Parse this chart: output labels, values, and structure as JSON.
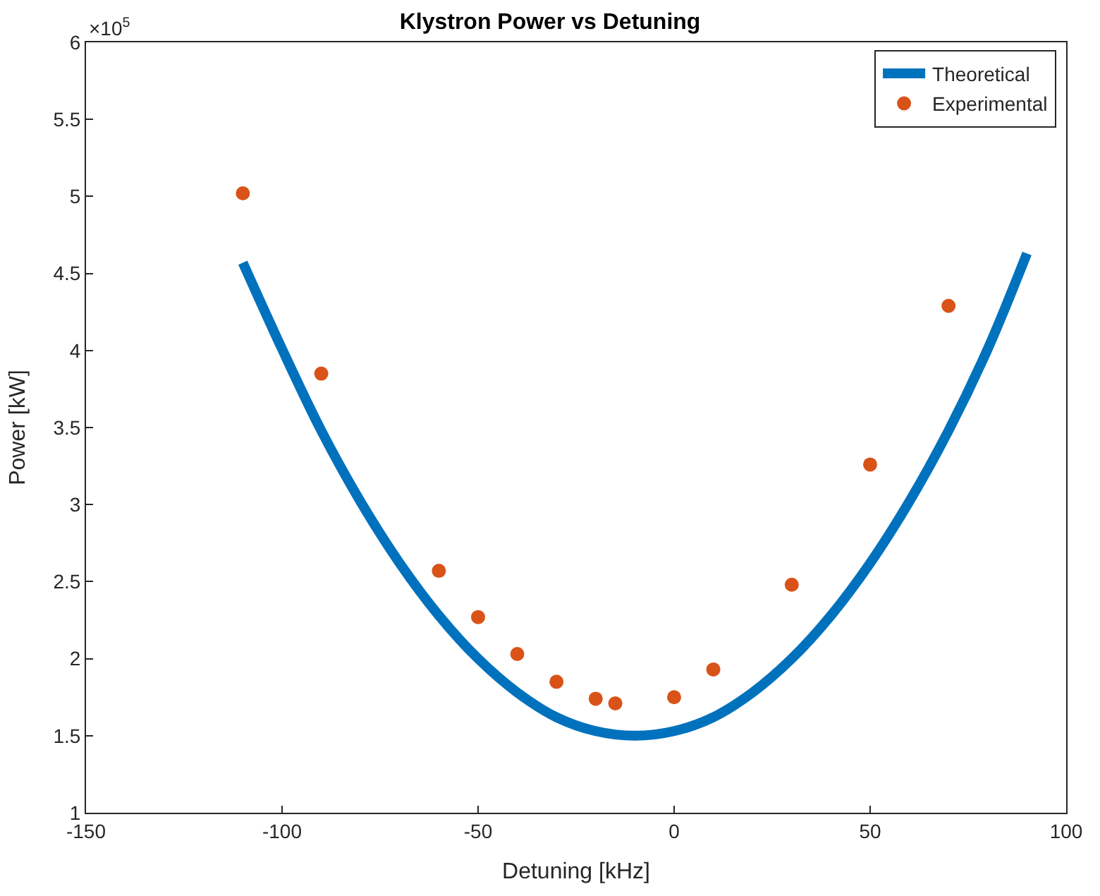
{
  "chart_data": {
    "type": "line",
    "title": "Klystron Power vs Detuning",
    "xlabel": "Detuning [kHz]",
    "ylabel": "Power [kW]",
    "annotations": [
      "×10$^{5}$"
    ],
    "xlim": [
      -150,
      100
    ],
    "xticks": [
      -150,
      -100,
      -50,
      0,
      50,
      100
    ],
    "ylim": [
      1,
      6
    ],
    "yticks": [
      1,
      1.5,
      2,
      2.5,
      3,
      3.5,
      4,
      4.5,
      5,
      5.5,
      6
    ],
    "legend": "top right",
    "series": [
      {
        "name": "Theoretical",
        "color": "#0072bd",
        "marker": "none",
        "line_style": "solid",
        "x": [
          -110,
          -100,
          -90,
          -80,
          -70,
          -60,
          -50,
          -40,
          -30,
          -20,
          -10,
          0,
          10,
          20,
          30,
          40,
          50,
          60,
          70,
          80,
          90
        ],
        "values": [
          4.57,
          4.01,
          3.48,
          3.02,
          2.62,
          2.28,
          2.0,
          1.78,
          1.62,
          1.53,
          1.5,
          1.53,
          1.62,
          1.78,
          2.0,
          2.28,
          2.62,
          3.02,
          3.48,
          4.01,
          4.63
        ]
      },
      {
        "name": "Experimental",
        "type": "scatter",
        "color": "#d95319",
        "marker": "circle",
        "x": [
          -110,
          -90,
          -60,
          -50,
          -40,
          -30,
          -20,
          -15,
          0,
          10,
          30,
          50,
          70
        ],
        "values": [
          5.02,
          3.85,
          2.57,
          2.27,
          2.03,
          1.85,
          1.74,
          1.71,
          1.75,
          1.93,
          2.48,
          3.26,
          4.29
        ]
      }
    ]
  }
}
